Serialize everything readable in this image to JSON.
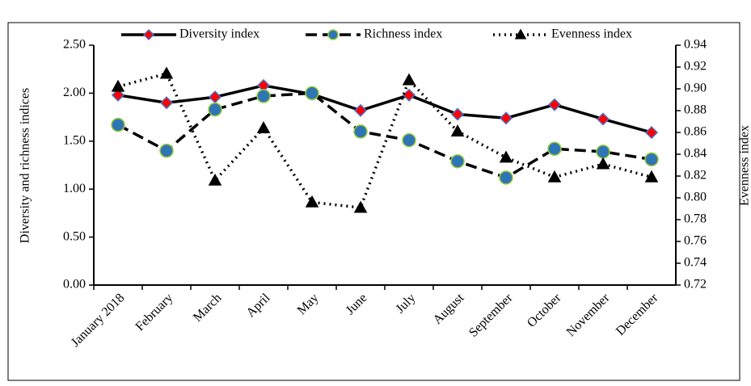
{
  "chart_data": {
    "type": "line",
    "categories": [
      "January 2018",
      "February",
      "March",
      "April",
      "May",
      "June",
      "July",
      "August",
      "September",
      "October",
      "November",
      "December"
    ],
    "ylabel": "Diversity and richness indices",
    "y2label": "Evenness index",
    "ylim": [
      0,
      2.5
    ],
    "yticks": [
      {
        "value": 0,
        "label": "0.00"
      },
      {
        "value": 0.5,
        "label": "0.50"
      },
      {
        "value": 1,
        "label": "1.00"
      },
      {
        "value": 1.5,
        "label": "1.50"
      },
      {
        "value": 2,
        "label": "2.00"
      },
      {
        "value": 2.5,
        "label": "2.50"
      }
    ],
    "y2lim": [
      0.72,
      0.94
    ],
    "y2ticks": [
      0.72,
      0.74,
      0.76,
      0.78,
      {
        "value": 0.8,
        "label": "0.80"
      },
      0.82,
      0.84,
      0.86,
      0.88,
      {
        "value": 0.9,
        "label": "0.90"
      },
      0.92,
      0.94
    ],
    "legend": "top",
    "series": [
      {
        "name": "Diversity index",
        "color": "#000000",
        "marker": "diamond",
        "marker_color": "#ff0000",
        "marker_edge": "#4a6fc4",
        "dash": "solid",
        "values": [
          1.98,
          1.9,
          1.96,
          2.08,
          1.99,
          1.82,
          1.98,
          1.78,
          1.74,
          1.88,
          1.73,
          1.59
        ]
      },
      {
        "name": "Richness index",
        "color": "#000000",
        "marker": "circle",
        "marker_color": "#2e75b6",
        "marker_edge": "#9acd32",
        "dash": "dashed",
        "values": [
          1.67,
          1.4,
          1.83,
          1.97,
          2.0,
          1.6,
          1.51,
          1.29,
          1.12,
          1.42,
          1.39,
          1.31
        ]
      },
      {
        "name": "Evenness index",
        "color": "#000000",
        "marker": "triangle",
        "marker_color": "#000000",
        "marker_edge": "#000000",
        "dash": "dotted",
        "axis": "y2",
        "values": [
          0.902,
          0.914,
          0.816,
          0.864,
          0.796,
          0.791,
          0.908,
          0.861,
          0.837,
          0.819,
          0.831,
          0.819
        ]
      }
    ]
  }
}
